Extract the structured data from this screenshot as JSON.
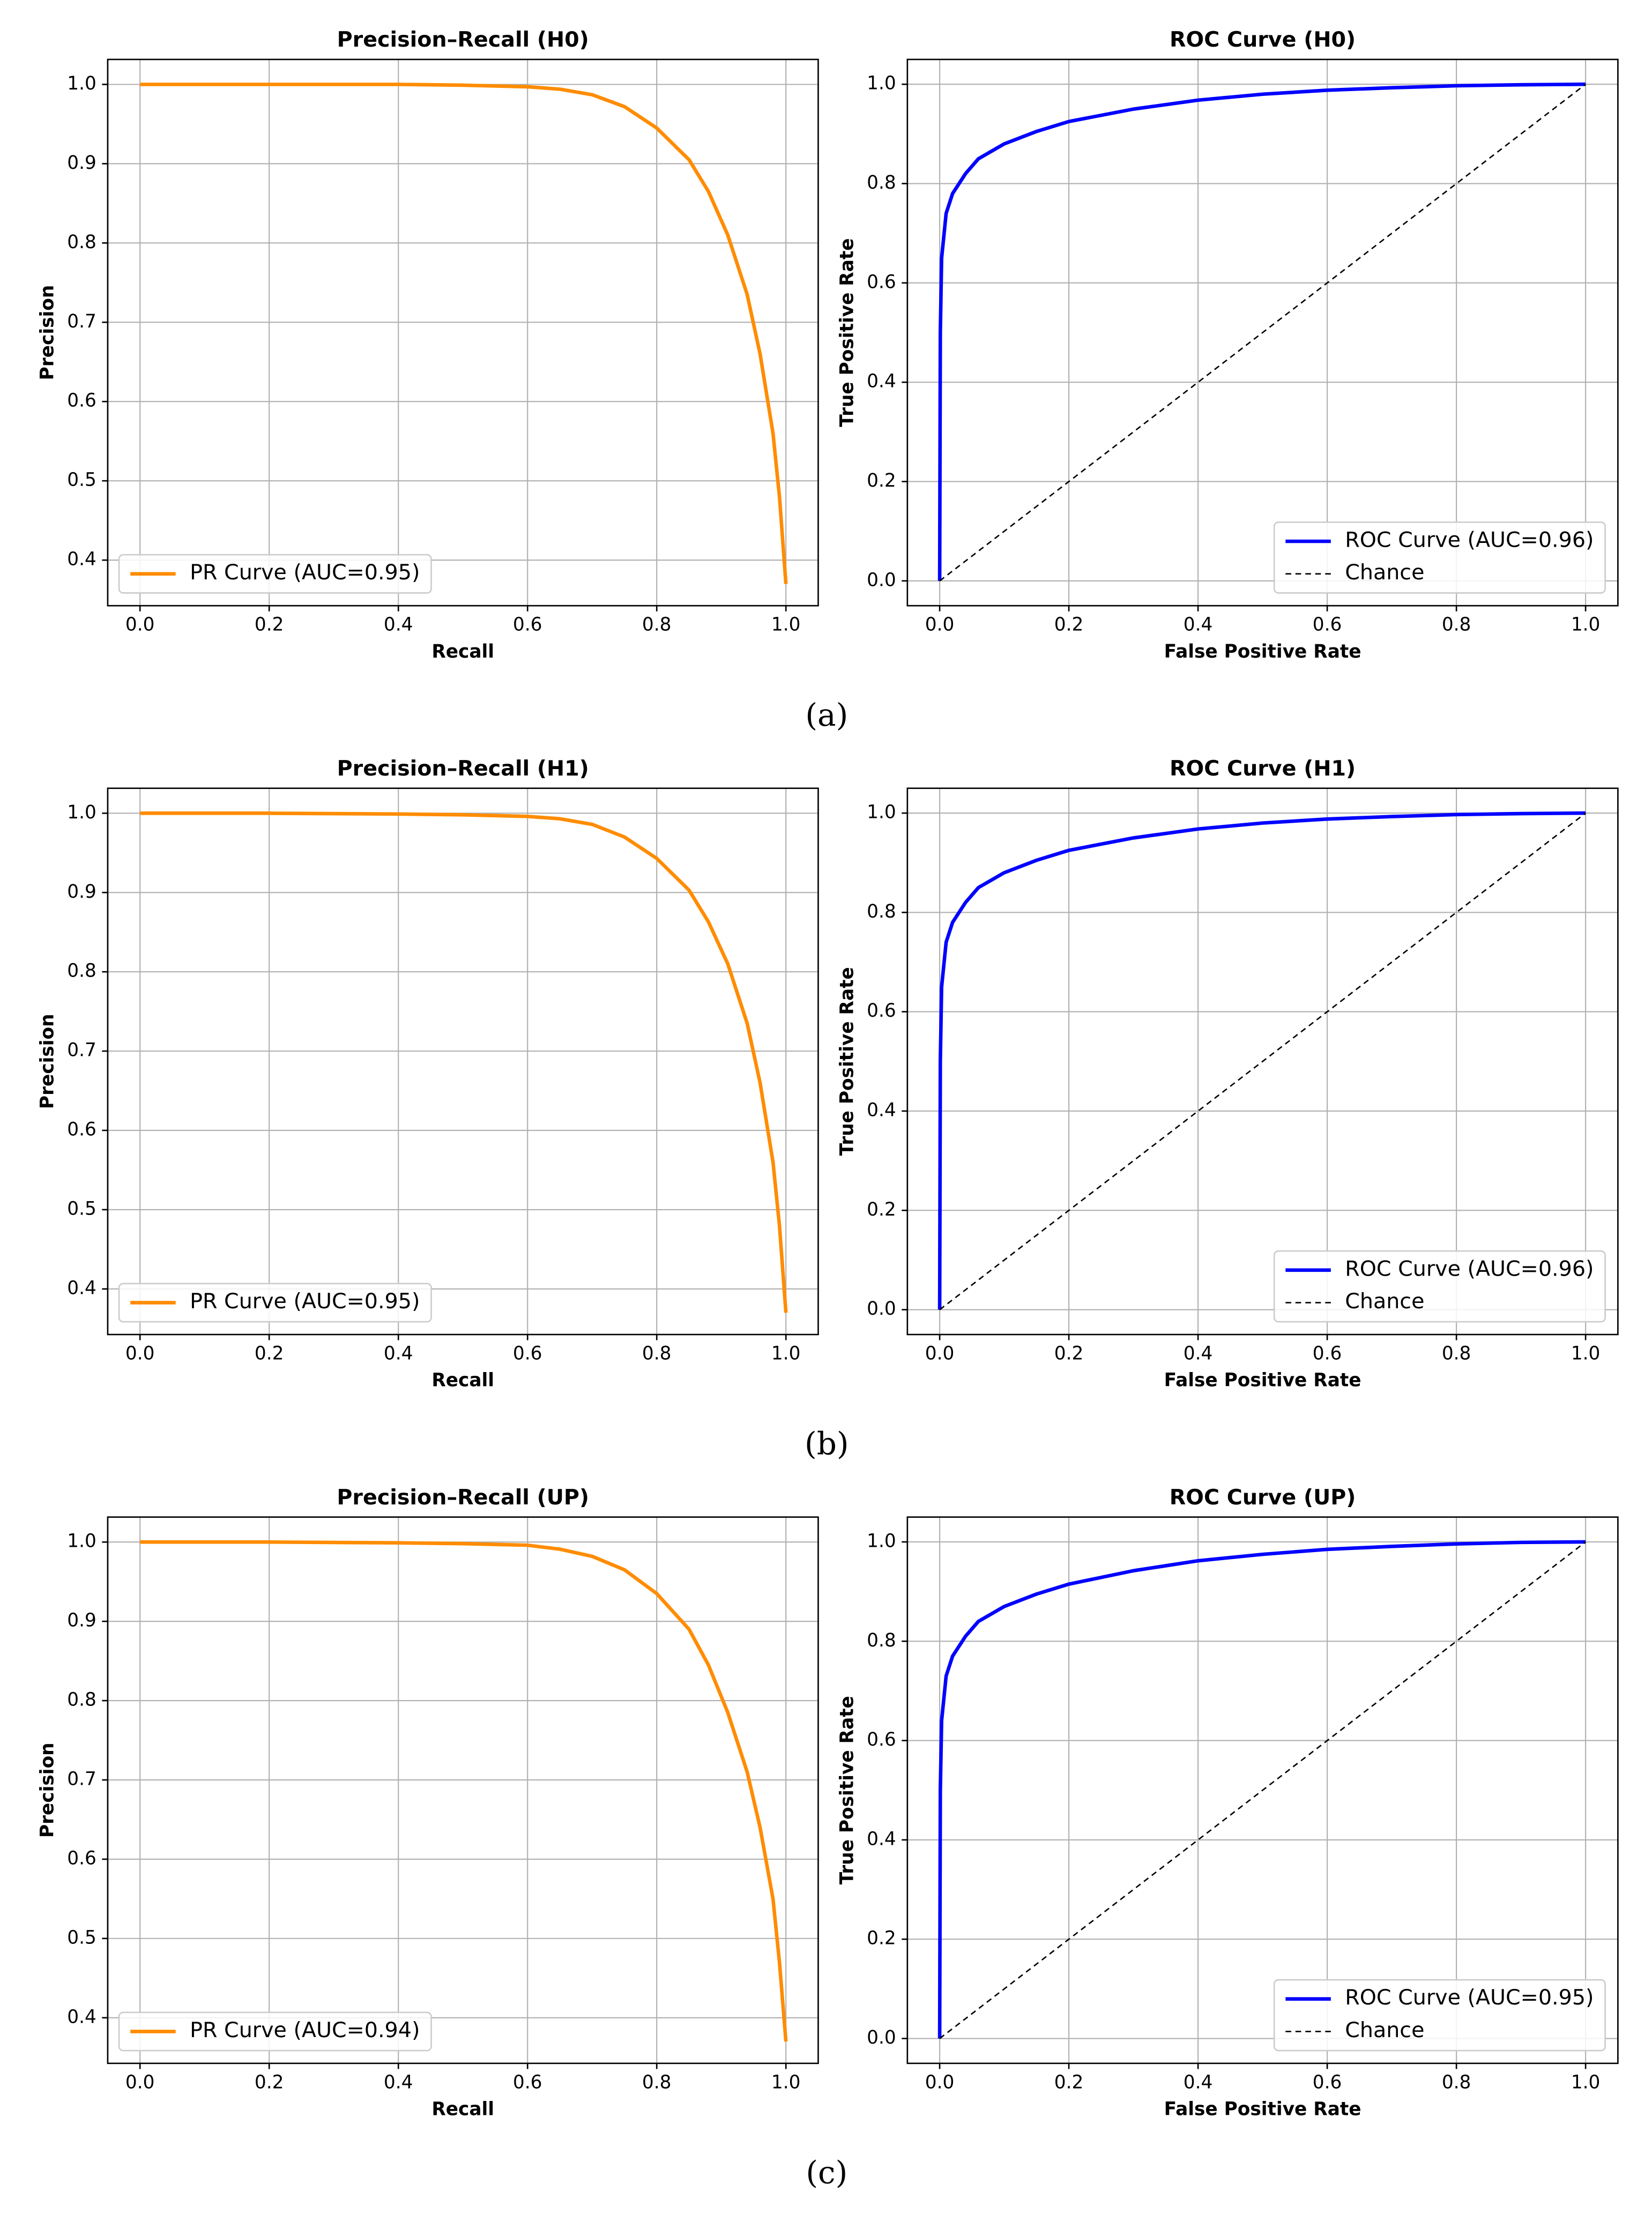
{
  "chart_data": [
    {
      "type": "line",
      "title": "Precision–Recall (H0)",
      "xlabel": "Recall",
      "ylabel": "Precision",
      "xlim": [
        -0.05,
        1.05
      ],
      "ylim": [
        0.3425,
        1.0315
      ],
      "xticks": [
        {
          "value": 0,
          "label": "0.0"
        },
        0.2,
        0.4,
        0.6,
        0.8,
        {
          "value": 1,
          "label": "1.0"
        }
      ],
      "yticks": [
        0.4,
        0.5,
        0.6,
        0.7,
        0.8,
        0.9,
        {
          "value": 1,
          "label": "1.0"
        }
      ],
      "grid": true,
      "legend": "lower left",
      "series": [
        {
          "name": "PR Curve (AUC=0.95)",
          "color": "#ff8c00",
          "x": [
            0,
            0.2,
            0.4,
            0.5,
            0.6,
            0.65,
            0.7,
            0.75,
            0.8,
            0.85,
            0.88,
            0.91,
            0.94,
            0.96,
            0.98,
            0.99,
            1.0
          ],
          "values": [
            1.0,
            1.0,
            1.0,
            0.999,
            0.997,
            0.994,
            0.987,
            0.972,
            0.945,
            0.905,
            0.865,
            0.81,
            0.735,
            0.66,
            0.56,
            0.48,
            0.37
          ]
        }
      ]
    },
    {
      "type": "line",
      "title": "ROC Curve (H0)",
      "xlabel": "False Positive Rate",
      "ylabel": "True Positive Rate",
      "xlim": [
        -0.05,
        1.05
      ],
      "ylim": [
        -0.05,
        1.05
      ],
      "xticks": [
        {
          "value": 0,
          "label": "0.0"
        },
        0.2,
        0.4,
        0.6,
        0.8,
        {
          "value": 1,
          "label": "1.0"
        }
      ],
      "yticks": [
        {
          "value": 0,
          "label": "0.0"
        },
        0.2,
        0.4,
        0.6,
        0.8,
        {
          "value": 1,
          "label": "1.0"
        }
      ],
      "grid": true,
      "legend": "lower right",
      "series": [
        {
          "name": "ROC Curve (AUC=0.96)",
          "color": "#0000ff",
          "x": [
            0,
            0.001,
            0.003,
            0.01,
            0.02,
            0.04,
            0.06,
            0.1,
            0.15,
            0.2,
            0.3,
            0.4,
            0.5,
            0.6,
            0.7,
            0.8,
            0.9,
            1.0
          ],
          "values": [
            0,
            0.5,
            0.65,
            0.74,
            0.78,
            0.82,
            0.85,
            0.88,
            0.905,
            0.925,
            0.95,
            0.968,
            0.98,
            0.988,
            0.993,
            0.997,
            0.999,
            1.0
          ]
        },
        {
          "name": "Chance",
          "color": "#000000",
          "dashed": true,
          "x": [
            0,
            1
          ],
          "values": [
            0,
            1
          ]
        }
      ]
    },
    {
      "type": "line",
      "title": "Precision–Recall (H1)",
      "xlabel": "Recall",
      "ylabel": "Precision",
      "xlim": [
        -0.05,
        1.05
      ],
      "ylim": [
        0.3425,
        1.0315
      ],
      "xticks": [
        {
          "value": 0,
          "label": "0.0"
        },
        0.2,
        0.4,
        0.6,
        0.8,
        {
          "value": 1,
          "label": "1.0"
        }
      ],
      "yticks": [
        0.4,
        0.5,
        0.6,
        0.7,
        0.8,
        0.9,
        {
          "value": 1,
          "label": "1.0"
        }
      ],
      "grid": true,
      "legend": "lower left",
      "series": [
        {
          "name": "PR Curve (AUC=0.95)",
          "color": "#ff8c00",
          "x": [
            0,
            0.2,
            0.4,
            0.5,
            0.6,
            0.65,
            0.7,
            0.75,
            0.8,
            0.85,
            0.88,
            0.91,
            0.94,
            0.96,
            0.98,
            0.99,
            1.0
          ],
          "values": [
            1.0,
            1.0,
            0.999,
            0.998,
            0.996,
            0.993,
            0.986,
            0.97,
            0.943,
            0.903,
            0.863,
            0.81,
            0.735,
            0.66,
            0.56,
            0.48,
            0.37
          ]
        }
      ]
    },
    {
      "type": "line",
      "title": "ROC Curve (H1)",
      "xlabel": "False Positive Rate",
      "ylabel": "True Positive Rate",
      "xlim": [
        -0.05,
        1.05
      ],
      "ylim": [
        -0.05,
        1.05
      ],
      "xticks": [
        {
          "value": 0,
          "label": "0.0"
        },
        0.2,
        0.4,
        0.6,
        0.8,
        {
          "value": 1,
          "label": "1.0"
        }
      ],
      "yticks": [
        {
          "value": 0,
          "label": "0.0"
        },
        0.2,
        0.4,
        0.6,
        0.8,
        {
          "value": 1,
          "label": "1.0"
        }
      ],
      "grid": true,
      "legend": "lower right",
      "series": [
        {
          "name": "ROC Curve (AUC=0.96)",
          "color": "#0000ff",
          "x": [
            0,
            0.001,
            0.003,
            0.01,
            0.02,
            0.04,
            0.06,
            0.1,
            0.15,
            0.2,
            0.3,
            0.4,
            0.5,
            0.6,
            0.7,
            0.8,
            0.9,
            1.0
          ],
          "values": [
            0,
            0.5,
            0.65,
            0.74,
            0.78,
            0.82,
            0.85,
            0.88,
            0.905,
            0.925,
            0.95,
            0.968,
            0.98,
            0.988,
            0.993,
            0.997,
            0.999,
            1.0
          ]
        },
        {
          "name": "Chance",
          "color": "#000000",
          "dashed": true,
          "x": [
            0,
            1
          ],
          "values": [
            0,
            1
          ]
        }
      ]
    },
    {
      "type": "line",
      "title": "Precision–Recall (UP)",
      "xlabel": "Recall",
      "ylabel": "Precision",
      "xlim": [
        -0.05,
        1.05
      ],
      "ylim": [
        0.3425,
        1.0315
      ],
      "xticks": [
        {
          "value": 0,
          "label": "0.0"
        },
        0.2,
        0.4,
        0.6,
        0.8,
        {
          "value": 1,
          "label": "1.0"
        }
      ],
      "yticks": [
        0.4,
        0.5,
        0.6,
        0.7,
        0.8,
        0.9,
        {
          "value": 1,
          "label": "1.0"
        }
      ],
      "grid": true,
      "legend": "lower left",
      "series": [
        {
          "name": "PR Curve (AUC=0.94)",
          "color": "#ff8c00",
          "x": [
            0,
            0.2,
            0.4,
            0.5,
            0.6,
            0.65,
            0.7,
            0.75,
            0.8,
            0.85,
            0.88,
            0.91,
            0.94,
            0.96,
            0.98,
            0.99,
            1.0
          ],
          "values": [
            1.0,
            1.0,
            0.999,
            0.998,
            0.996,
            0.991,
            0.982,
            0.965,
            0.935,
            0.89,
            0.845,
            0.785,
            0.71,
            0.64,
            0.55,
            0.47,
            0.37
          ]
        }
      ]
    },
    {
      "type": "line",
      "title": "ROC Curve (UP)",
      "xlabel": "False Positive Rate",
      "ylabel": "True Positive Rate",
      "xlim": [
        -0.05,
        1.05
      ],
      "ylim": [
        -0.05,
        1.05
      ],
      "xticks": [
        {
          "value": 0,
          "label": "0.0"
        },
        0.2,
        0.4,
        0.6,
        0.8,
        {
          "value": 1,
          "label": "1.0"
        }
      ],
      "yticks": [
        {
          "value": 0,
          "label": "0.0"
        },
        0.2,
        0.4,
        0.6,
        0.8,
        {
          "value": 1,
          "label": "1.0"
        }
      ],
      "grid": true,
      "legend": "lower right",
      "series": [
        {
          "name": "ROC Curve (AUC=0.95)",
          "color": "#0000ff",
          "x": [
            0,
            0.001,
            0.003,
            0.01,
            0.02,
            0.04,
            0.06,
            0.1,
            0.15,
            0.2,
            0.3,
            0.4,
            0.5,
            0.6,
            0.7,
            0.8,
            0.9,
            1.0
          ],
          "values": [
            0,
            0.5,
            0.64,
            0.73,
            0.77,
            0.81,
            0.84,
            0.87,
            0.895,
            0.915,
            0.942,
            0.962,
            0.975,
            0.985,
            0.991,
            0.996,
            0.999,
            1.0
          ]
        },
        {
          "name": "Chance",
          "color": "#000000",
          "dashed": true,
          "x": [
            0,
            1
          ],
          "values": [
            0,
            1
          ]
        }
      ]
    }
  ],
  "captions": [
    "(a)",
    "(b)",
    "(c)"
  ]
}
